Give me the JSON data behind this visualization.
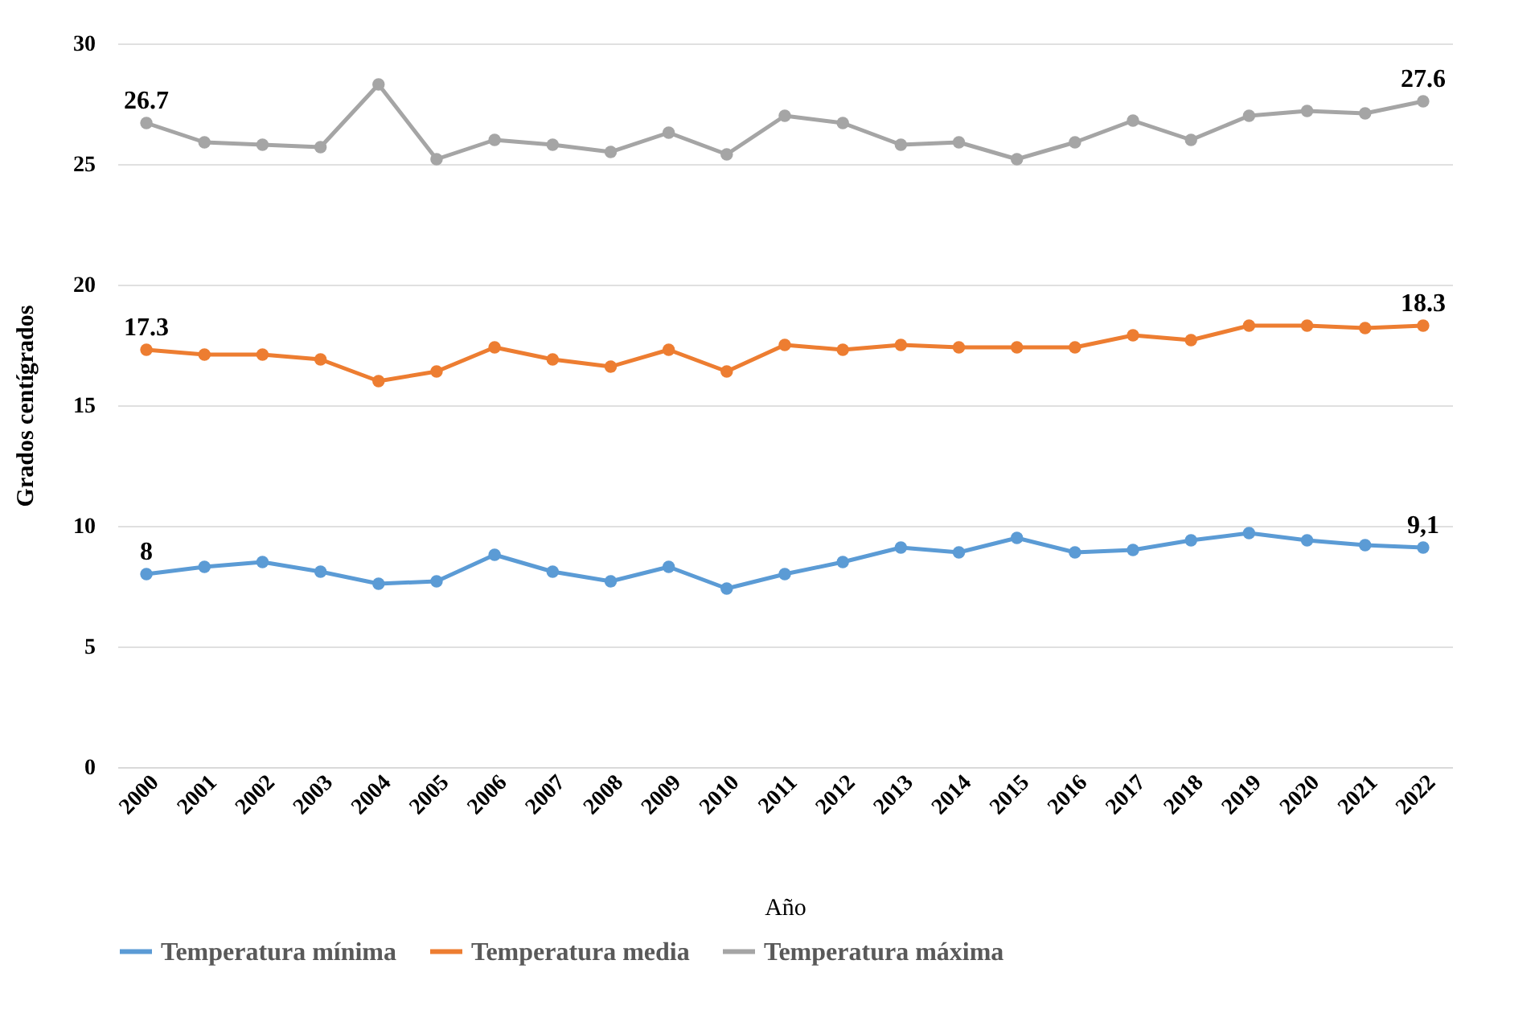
{
  "chart_data": {
    "type": "line",
    "xlabel": "Año",
    "ylabel": "Grados centígrados",
    "categories": [
      "2000",
      "2001",
      "2002",
      "2003",
      "2004",
      "2005",
      "2006",
      "2007",
      "2008",
      "2009",
      "2010",
      "2011",
      "2012",
      "2013",
      "2014",
      "2015",
      "2016",
      "2017",
      "2018",
      "2019",
      "2020",
      "2021",
      "2022"
    ],
    "series": [
      {
        "name": "Temperatura mínima",
        "color": "#5b9bd5",
        "values": [
          8.0,
          8.3,
          8.5,
          8.1,
          7.6,
          7.7,
          8.8,
          8.1,
          7.7,
          8.3,
          7.4,
          8.0,
          8.5,
          9.1,
          8.9,
          9.5,
          8.9,
          9.0,
          9.4,
          9.7,
          9.4,
          9.2,
          9.1
        ],
        "value_labels": [
          "8",
          null,
          null,
          null,
          null,
          null,
          null,
          null,
          null,
          null,
          null,
          null,
          null,
          null,
          null,
          null,
          null,
          null,
          null,
          null,
          null,
          null,
          "9,1"
        ]
      },
      {
        "name": "Temperatura media",
        "color": "#ed7d31",
        "values": [
          17.3,
          17.1,
          17.1,
          16.9,
          16.0,
          16.4,
          17.4,
          16.9,
          16.6,
          17.3,
          16.4,
          17.5,
          17.3,
          17.5,
          17.4,
          17.4,
          17.4,
          17.9,
          17.7,
          18.3,
          18.3,
          18.2,
          18.3
        ],
        "value_labels": [
          "17.3",
          null,
          null,
          null,
          null,
          null,
          null,
          null,
          null,
          null,
          null,
          null,
          null,
          null,
          null,
          null,
          null,
          null,
          null,
          null,
          null,
          null,
          "18.3"
        ]
      },
      {
        "name": "Temperatura máxima",
        "color": "#a5a5a5",
        "values": [
          26.7,
          25.9,
          25.8,
          25.7,
          28.3,
          25.2,
          26.0,
          25.8,
          25.5,
          26.3,
          25.4,
          27.0,
          26.7,
          25.8,
          25.9,
          25.2,
          25.9,
          26.8,
          26.0,
          27.0,
          27.2,
          27.1,
          27.6
        ],
        "value_labels": [
          "26.7",
          null,
          null,
          null,
          null,
          null,
          null,
          null,
          null,
          null,
          null,
          null,
          null,
          null,
          null,
          null,
          null,
          null,
          null,
          null,
          null,
          null,
          "27.6"
        ]
      }
    ],
    "ylim": [
      0,
      30
    ],
    "yticks": [
      0,
      5,
      10,
      15,
      20,
      25,
      30
    ],
    "grid": "y",
    "legend": "bottom",
    "marker": "circle",
    "line_style": "solid"
  }
}
